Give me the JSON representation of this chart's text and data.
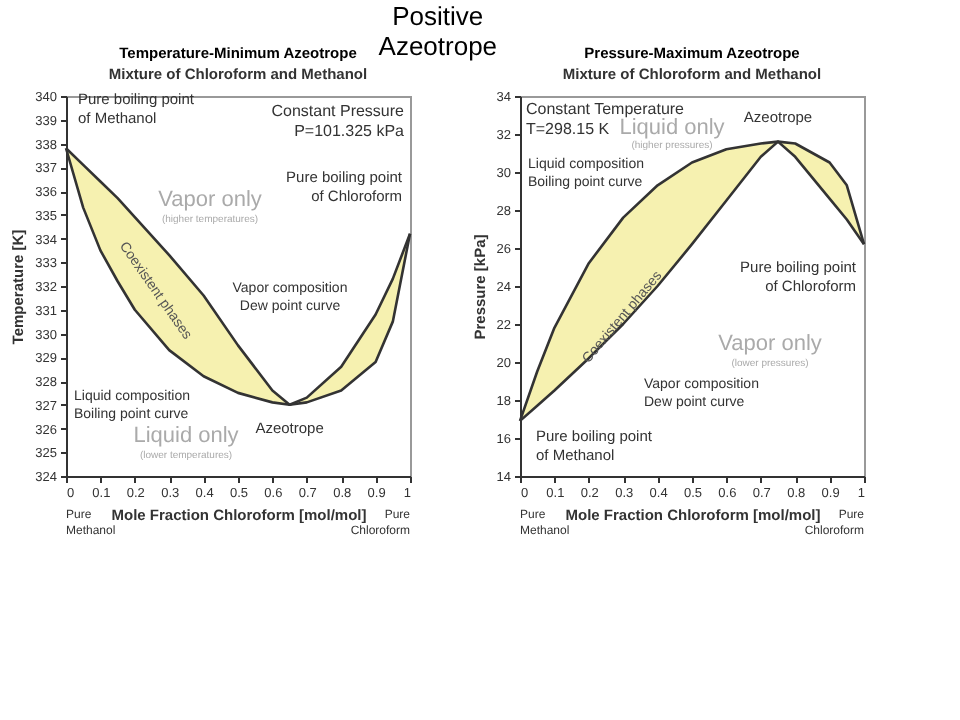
{
  "chart_data": [
    {
      "type": "line",
      "title": "Temperature-Minimum Azeotrope",
      "subtitle": "Mixture of Chloroform and Methanol",
      "xlabel": "Mole Fraction Chloroform [mol/mol]",
      "ylabel": "Temperature [K]",
      "xlim": [
        0,
        1
      ],
      "xticks": [
        0,
        0.1,
        0.2,
        0.3,
        0.4,
        0.5,
        0.6,
        0.7,
        0.8,
        0.9,
        1
      ],
      "ylim": [
        324,
        340
      ],
      "yticks": [
        324,
        325,
        326,
        327,
        328,
        329,
        330,
        331,
        332,
        333,
        334,
        335,
        336,
        337,
        338,
        339,
        340
      ],
      "grid": false,
      "legend": false,
      "x": [
        0,
        0.05,
        0.1,
        0.15,
        0.2,
        0.3,
        0.4,
        0.5,
        0.6,
        0.65,
        0.7,
        0.8,
        0.9,
        0.95,
        1
      ],
      "series": [
        {
          "color": "#333333",
          "values": [
            337.8,
            335.3,
            333.5,
            332.2,
            331.0,
            329.3,
            328.2,
            327.5,
            327.1,
            327.0,
            327.1,
            327.6,
            328.8,
            330.5,
            334.2
          ]
        },
        {
          "color": "#333333",
          "values": [
            337.8,
            337.1,
            336.4,
            335.7,
            334.9,
            333.3,
            331.6,
            329.5,
            327.6,
            327.0,
            327.3,
            328.6,
            330.8,
            332.3,
            334.2
          ]
        }
      ],
      "annotations": [
        "Positive\nAzeotrope",
        "Constant Pressure\nP=101.325 kPa",
        {
          "text": "Pure boiling point\nof Methanol",
          "x": 0,
          "y": 337.8
        },
        {
          "text": "Pure boiling point\nof Chloroform",
          "x": 1,
          "y": 334.2
        },
        "Vapor only",
        "(higher temperatures)",
        "Vapor composition\nDew point curve",
        "Coexistent phases",
        "Liquid composition\nBoiling point curve",
        "Liquid only",
        "(lower temperatures)",
        {
          "text": "Azeotrope",
          "x": 0.65,
          "y": 327.0
        },
        "Pure\nMethanol",
        "Pure\nChloroform"
      ]
    },
    {
      "type": "line",
      "title": "Pressure-Maximum Azeotrope",
      "subtitle": "Mixture of Chloroform and Methanol",
      "xlabel": "Mole Fraction Chloroform [mol/mol]",
      "ylabel": "Pressure [kPa]",
      "xlim": [
        0,
        1
      ],
      "xticks": [
        0,
        0.1,
        0.2,
        0.3,
        0.4,
        0.5,
        0.6,
        0.7,
        0.8,
        0.9,
        1
      ],
      "ylim": [
        14,
        34
      ],
      "yticks": [
        14,
        16,
        18,
        20,
        22,
        24,
        26,
        28,
        30,
        32,
        34
      ],
      "grid": false,
      "legend": false,
      "x": [
        0,
        0.05,
        0.1,
        0.2,
        0.3,
        0.4,
        0.5,
        0.6,
        0.7,
        0.75,
        0.8,
        0.9,
        0.95,
        1
      ],
      "series": [
        {
          "color": "#333333",
          "values": [
            16.9,
            19.5,
            21.8,
            25.2,
            27.6,
            29.3,
            30.5,
            31.2,
            31.5,
            31.6,
            31.5,
            30.5,
            29.3,
            26.2
          ]
        },
        {
          "color": "#333333",
          "values": [
            16.9,
            17.7,
            18.5,
            20.2,
            22.0,
            24.0,
            26.2,
            28.5,
            30.8,
            31.6,
            30.8,
            28.6,
            27.5,
            26.2
          ]
        }
      ],
      "annotations": [
        "Constant Temperature\nT=298.15 K",
        {
          "text": "Azeotrope",
          "x": 0.75,
          "y": 31.6
        },
        "Liquid only",
        "(higher pressures)",
        "Liquid composition\nBoiling point curve",
        "Coexistent phases",
        {
          "text": "Pure boiling point\nof Chloroform",
          "x": 1,
          "y": 26.2
        },
        "Vapor only",
        "(lower pressures)",
        "Vapor composition\nDew point curve",
        {
          "text": "Pure boiling point\nof Methanol",
          "x": 0,
          "y": 16.9
        },
        "Pure\nMethanol",
        "Pure\nChloroform"
      ]
    }
  ]
}
